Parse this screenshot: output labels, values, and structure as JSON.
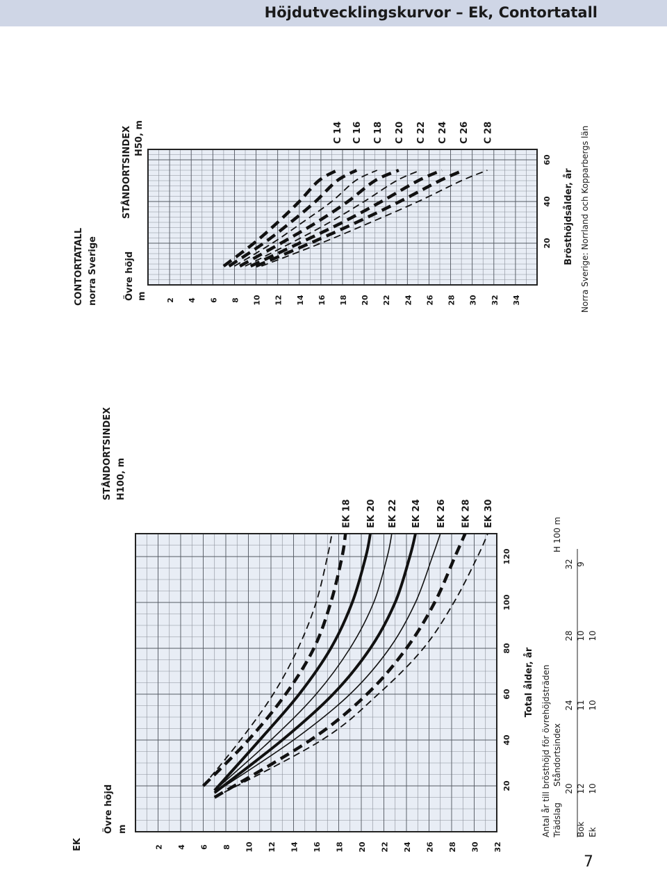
{
  "page": {
    "title": "Höjdutvecklingskurvor – Ek, Contortatall",
    "page_number": "7"
  },
  "chart_data": [
    {
      "type": "line",
      "title": "EK",
      "ylabel_line1": "Övre höjd",
      "ylabel_line2": "m",
      "xlabel": "Total ålder, år",
      "index_label_line1": "STÅNDORTSINDEX",
      "index_label_line2": "H100, m",
      "xlim": [
        0,
        130
      ],
      "ylim": [
        0,
        32
      ],
      "x_ticks": [
        20,
        40,
        60,
        80,
        100,
        120
      ],
      "y_ticks": [
        2,
        4,
        6,
        8,
        10,
        12,
        14,
        16,
        18,
        20,
        22,
        24,
        26,
        28,
        30,
        32
      ],
      "grid": true,
      "series": [
        {
          "name": "EK 30",
          "style": "thin-dashed",
          "x": [
            15,
            40,
            60,
            80,
            100,
            120,
            130
          ],
          "y": [
            7,
            16.5,
            21.5,
            25.5,
            28.2,
            30.3,
            31.2
          ]
        },
        {
          "name": "EK 28",
          "style": "thick-dashed",
          "x": [
            15,
            40,
            60,
            80,
            100,
            120,
            130
          ],
          "y": [
            7,
            15.5,
            20.5,
            24,
            26.5,
            28.3,
            29.2
          ]
        },
        {
          "name": "EK 26",
          "style": "thin-solid",
          "x": [
            17,
            40,
            60,
            80,
            100,
            120,
            130
          ],
          "y": [
            7,
            14,
            19,
            22.5,
            24.8,
            26.3,
            27
          ]
        },
        {
          "name": "EK 24",
          "style": "thick-solid",
          "x": [
            17,
            40,
            60,
            80,
            100,
            120,
            130
          ],
          "y": [
            7,
            13,
            17.5,
            20.8,
            23,
            24.3,
            24.8
          ]
        },
        {
          "name": "EK 22",
          "style": "thin-solid",
          "x": [
            18,
            40,
            60,
            80,
            100,
            120,
            130
          ],
          "y": [
            7,
            12,
            16,
            19,
            21.1,
            22.3,
            22.7
          ]
        },
        {
          "name": "EK 20",
          "style": "thick-solid",
          "x": [
            18,
            40,
            60,
            80,
            100,
            120,
            130
          ],
          "y": [
            7,
            11,
            14.5,
            17.3,
            19.2,
            20.4,
            20.8
          ]
        },
        {
          "name": "EK 18",
          "style": "thick-dashed",
          "x": [
            20,
            40,
            60,
            80,
            100,
            120,
            130
          ],
          "y": [
            6,
            10,
            13.3,
            15.8,
            17.3,
            18.3,
            18.6
          ]
        },
        {
          "name": "",
          "style": "thin-dashed",
          "x": [
            20,
            40,
            60,
            80,
            100,
            120,
            130
          ],
          "y": [
            6,
            9.3,
            12.2,
            14.4,
            16,
            17,
            17.4
          ]
        }
      ]
    },
    {
      "type": "line",
      "title_line1": "CONTORTATALL",
      "title_line2": "norra Sverige",
      "ylabel_line1": "Övre höjd",
      "ylabel_line2": "m",
      "xlabel": "Brösthöjdsålder, år",
      "index_label_line1": "STÅNDORTSINDEX",
      "index_label_line2": "H50, m",
      "note": "Norra Sverige: Norrland och Kopparbergs län",
      "xlim": [
        0,
        65
      ],
      "ylim": [
        0,
        36
      ],
      "x_ticks": [
        20,
        40,
        60
      ],
      "y_ticks": [
        2,
        4,
        6,
        8,
        10,
        12,
        14,
        16,
        18,
        20,
        22,
        24,
        26,
        28,
        30,
        32,
        34
      ],
      "grid": true,
      "series": [
        {
          "name": "C 28",
          "style": "thin-dashed",
          "x": [
            9,
            20,
            30,
            40,
            50,
            55
          ],
          "y": [
            10.5,
            16,
            20.6,
            25,
            29,
            31.4
          ]
        },
        {
          "name": "C 26",
          "style": "thick-dashed",
          "x": [
            9,
            20,
            30,
            40,
            50,
            55
          ],
          "y": [
            10,
            15,
            19.3,
            23.3,
            27,
            29.2
          ]
        },
        {
          "name": "C 24",
          "style": "thick-dashed",
          "x": [
            9,
            20,
            30,
            40,
            50,
            55
          ],
          "y": [
            9.5,
            14,
            18,
            21.6,
            25,
            27.2
          ]
        },
        {
          "name": "C 22",
          "style": "thin-dashed",
          "x": [
            9,
            20,
            30,
            40,
            50,
            55
          ],
          "y": [
            9,
            13.2,
            16.8,
            20,
            23,
            25.2
          ]
        },
        {
          "name": "C 20",
          "style": "thick-dashed",
          "x": [
            9,
            20,
            30,
            40,
            50,
            55
          ],
          "y": [
            8.5,
            12.3,
            15.6,
            18.5,
            21,
            23.2
          ]
        },
        {
          "name": "C 18",
          "style": "thin-dashed",
          "x": [
            9,
            20,
            30,
            40,
            50,
            55
          ],
          "y": [
            8,
            11.5,
            14.3,
            17,
            19.2,
            21.2
          ]
        },
        {
          "name": "C 16",
          "style": "thick-dashed",
          "x": [
            9,
            20,
            30,
            40,
            50,
            55
          ],
          "y": [
            7.5,
            10.7,
            13.2,
            15.5,
            17.5,
            19.3
          ]
        },
        {
          "name": "C 14",
          "style": "thick-dashed",
          "x": [
            9,
            20,
            30,
            40,
            50,
            55
          ],
          "y": [
            7,
            9.8,
            12,
            14,
            15.8,
            17.5
          ]
        }
      ]
    }
  ],
  "age_table": {
    "heading": "Antal år till brösthöjd för övrehöjdsträden",
    "col_tradslag": "Trädslag",
    "col_standortsindex": "Ståndortsindex",
    "col_h100": "H 100 m",
    "index_values": [
      "20",
      "24",
      "28",
      "32"
    ],
    "rows": [
      {
        "name": "Bok",
        "values": [
          "12",
          "11",
          "10",
          "9"
        ]
      },
      {
        "name": "Ek",
        "values": [
          "10",
          "10",
          "10",
          ""
        ]
      }
    ]
  }
}
